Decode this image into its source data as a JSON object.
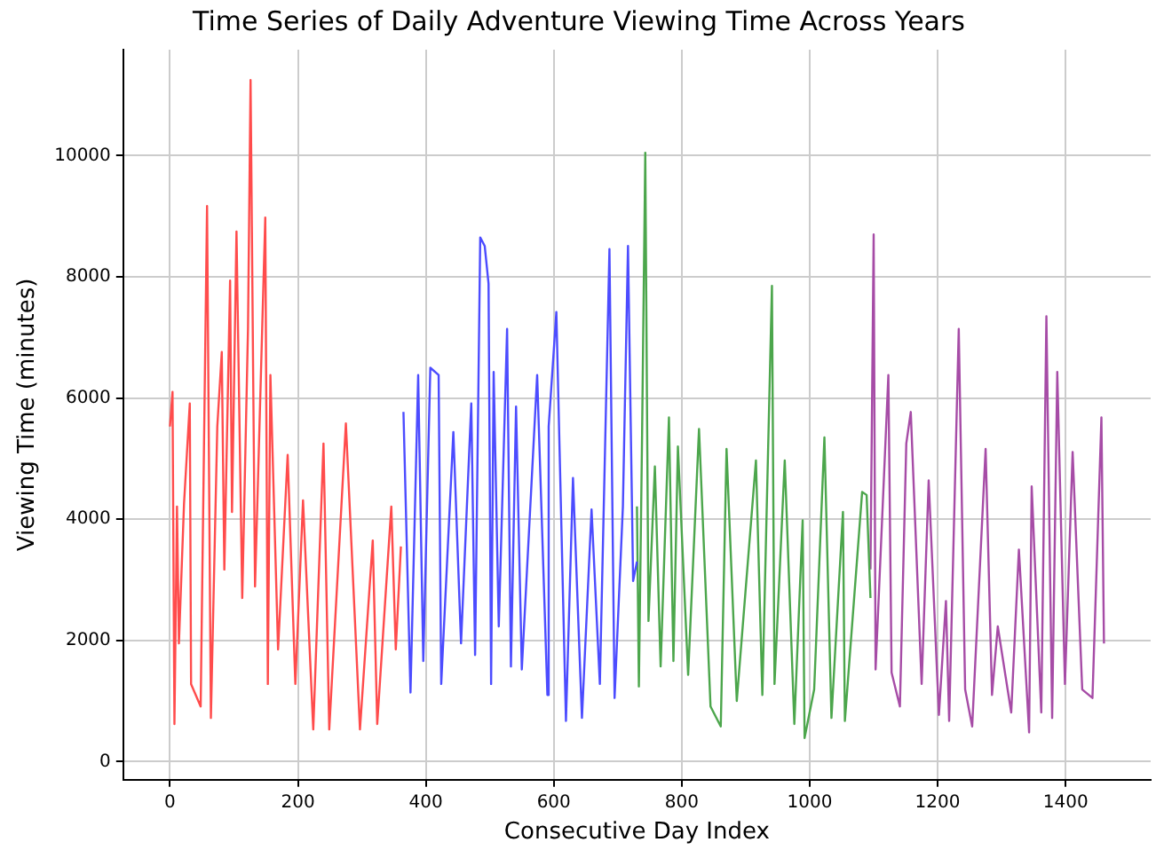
{
  "chart_data": {
    "type": "line",
    "title": "Time Series of Daily Adventure Viewing Time Across Years",
    "xlabel": "Consecutive Day Index",
    "ylabel": "Viewing Time (minutes)",
    "xlim": [
      -73,
      1533
    ],
    "ylim": [
      -300,
      11750
    ],
    "xticks": [
      0,
      200,
      400,
      600,
      800,
      1000,
      1200,
      1400
    ],
    "yticks": [
      0,
      2000,
      4000,
      6000,
      8000,
      10000
    ],
    "grid": true,
    "legend": false,
    "series": [
      {
        "color": "#ff4c4c",
        "x": [
          0,
          4,
          7,
          11,
          14,
          22,
          31,
          33,
          48,
          58,
          64,
          74,
          81,
          85,
          94,
          97,
          104,
          113,
          122,
          126,
          133,
          149,
          153,
          157,
          169,
          184,
          196,
          208,
          224,
          240,
          249,
          275,
          297,
          317,
          324,
          346,
          353,
          361
        ],
        "values": [
          5530,
          6100,
          620,
          4210,
          1950,
          4260,
          5910,
          1280,
          910,
          9170,
          720,
          5530,
          6760,
          3170,
          7940,
          4120,
          8750,
          2700,
          7140,
          11250,
          2890,
          8980,
          1280,
          6380,
          1850,
          5060,
          1280,
          4310,
          530,
          5250,
          530,
          5580,
          530,
          3650,
          620,
          4210,
          1850,
          3550
        ]
      },
      {
        "color": "#4c4cff",
        "x": [
          365,
          376,
          388,
          396,
          407,
          420,
          424,
          443,
          455,
          471,
          477,
          485,
          492,
          498,
          502,
          506,
          514,
          527,
          533,
          541,
          550,
          574,
          590,
          592,
          604,
          619,
          630,
          644,
          659,
          672,
          687,
          695,
          708,
          716,
          724,
          730
        ],
        "values": [
          5770,
          1140,
          6380,
          1660,
          6500,
          6380,
          1280,
          5440,
          1950,
          5910,
          1760,
          8650,
          8510,
          7890,
          1280,
          6430,
          2230,
          7140,
          1570,
          5860,
          1520,
          6380,
          1100,
          5530,
          7420,
          670,
          4680,
          720,
          4160,
          1280,
          8460,
          1050,
          4210,
          8510,
          2980,
          3300
        ]
      },
      {
        "color": "#4ca64c",
        "x": [
          730,
          733,
          738,
          743,
          748,
          758,
          767,
          780,
          787,
          794,
          810,
          827,
          845,
          861,
          870,
          886,
          916,
          926,
          941,
          945,
          961,
          976,
          989,
          992,
          1007,
          1023,
          1034,
          1052,
          1055,
          1082,
          1089,
          1095
        ],
        "values": [
          4210,
          1240,
          5390,
          10050,
          2320,
          4870,
          1570,
          5680,
          1660,
          5200,
          1430,
          5490,
          910,
          580,
          5160,
          1000,
          4970,
          1100,
          7850,
          1280,
          4970,
          620,
          3980,
          390,
          1190,
          5350,
          720,
          4120,
          670,
          4450,
          4400,
          2700
        ]
      },
      {
        "color": "#a64ca6",
        "x": [
          1095,
          1100,
          1103,
          1123,
          1128,
          1141,
          1151,
          1158,
          1175,
          1186,
          1202,
          1213,
          1218,
          1233,
          1243,
          1254,
          1275,
          1285,
          1294,
          1315,
          1327,
          1343,
          1347,
          1362,
          1370,
          1379,
          1387,
          1399,
          1411,
          1426,
          1442,
          1456,
          1460
        ],
        "values": [
          3170,
          8700,
          1520,
          6380,
          1470,
          910,
          5250,
          5770,
          1280,
          4640,
          770,
          2650,
          670,
          7140,
          1190,
          580,
          5160,
          1100,
          2230,
          810,
          3500,
          480,
          4540,
          810,
          7350,
          720,
          6430,
          1280,
          5110,
          1190,
          1050,
          5680,
          1950
        ]
      }
    ]
  }
}
